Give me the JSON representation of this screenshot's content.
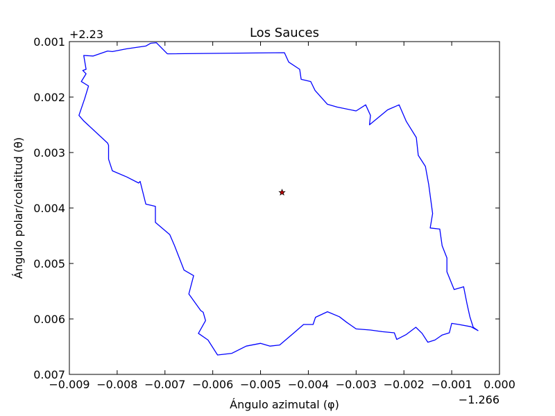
{
  "chart_data": {
    "type": "line",
    "title": "Los Sauces",
    "xlabel": "Ángulo azimutal (φ)",
    "ylabel": "Ángulo polar/colatitud (θ)",
    "x_offset_label": "−1.266",
    "y_offset_label": "+2.23",
    "xlim": [
      -0.009,
      0.0
    ],
    "ylim": [
      0.001,
      0.007
    ],
    "y_inverted": true,
    "grid": false,
    "x_ticks": [
      "−0.009",
      "−0.008",
      "−0.007",
      "−0.006",
      "−0.005",
      "−0.004",
      "−0.003",
      "−0.002",
      "−0.001",
      "0.000"
    ],
    "y_ticks": [
      "0.001",
      "0.002",
      "0.003",
      "0.004",
      "0.005",
      "0.006",
      "0.007"
    ],
    "x_tick_values": [
      -0.009,
      -0.008,
      -0.007,
      -0.006,
      -0.005,
      -0.004,
      -0.003,
      -0.002,
      -0.001,
      0.0
    ],
    "y_tick_values": [
      0.001,
      0.002,
      0.003,
      0.004,
      0.005,
      0.006,
      0.007
    ],
    "colors": {
      "boundary": "#0000ff",
      "center_fill": "#c00000",
      "axes": "#000000"
    },
    "series": [
      {
        "type": "line",
        "x": [
          -0.00695,
          -0.0045,
          -0.00441,
          -0.00418,
          -0.00415,
          -0.00395,
          -0.00386,
          -0.0036,
          -0.0034,
          -0.003,
          -0.0028,
          -0.0027,
          -0.00272,
          -0.00234,
          -0.0021,
          -0.00195,
          -0.00174,
          -0.0017,
          -0.00155,
          -0.00148,
          -0.0014,
          -0.00145,
          -0.00125,
          -0.0012,
          -0.0011,
          -0.0011,
          -0.00095,
          -0.00075,
          -0.00068,
          -0.00062,
          -0.00055,
          -0.00045,
          -0.0006,
          -0.00085,
          -0.001,
          -0.00105,
          -0.0012,
          -0.00135,
          -0.0015,
          -0.00162,
          -0.00175,
          -0.00195,
          -0.00215,
          -0.0022,
          -0.00245,
          -0.0027,
          -0.003,
          -0.0032,
          -0.00335,
          -0.0036,
          -0.00385,
          -0.0039,
          -0.0041,
          -0.0043,
          -0.0046,
          -0.0048,
          -0.005,
          -0.0053,
          -0.0056,
          -0.0059,
          -0.0061,
          -0.0063,
          -0.00615,
          -0.0062,
          -0.00625,
          -0.0065,
          -0.0064,
          -0.0066,
          -0.0068,
          -0.0069,
          -0.0072,
          -0.0072,
          -0.0074,
          -0.00752,
          -0.00755,
          -0.0078,
          -0.0081,
          -0.00818,
          -0.00818,
          -0.0082,
          -0.0087,
          -0.0088,
          -0.00868,
          -0.0086,
          -0.00875,
          -0.00865,
          -0.00872,
          -0.00865,
          -0.0087,
          -0.0085,
          -0.0082,
          -0.0081,
          -0.0078,
          -0.0074,
          -0.0073,
          -0.00718,
          -0.00695
        ],
        "y": [
          0.00122,
          0.0012,
          0.00137,
          0.0015,
          0.00168,
          0.00172,
          0.00188,
          0.00213,
          0.00218,
          0.00225,
          0.00214,
          0.00233,
          0.0025,
          0.00223,
          0.00214,
          0.00244,
          0.00273,
          0.00305,
          0.00325,
          0.00358,
          0.0041,
          0.00436,
          0.00438,
          0.00468,
          0.0049,
          0.00515,
          0.00547,
          0.00542,
          0.00573,
          0.00596,
          0.00615,
          0.00621,
          0.00614,
          0.0061,
          0.00608,
          0.00625,
          0.00629,
          0.00638,
          0.00642,
          0.00626,
          0.00615,
          0.00628,
          0.00637,
          0.00625,
          0.00623,
          0.0062,
          0.00618,
          0.00606,
          0.00596,
          0.00587,
          0.00597,
          0.0061,
          0.0061,
          0.00625,
          0.00647,
          0.00649,
          0.00644,
          0.00649,
          0.00662,
          0.00665,
          0.00638,
          0.00626,
          0.00603,
          0.00588,
          0.00585,
          0.00555,
          0.00522,
          0.00512,
          0.00468,
          0.00448,
          0.00426,
          0.00397,
          0.00393,
          0.00352,
          0.00355,
          0.00344,
          0.00333,
          0.00312,
          0.00287,
          0.00283,
          0.00243,
          0.00233,
          0.00203,
          0.0018,
          0.00172,
          0.00158,
          0.00152,
          0.0015,
          0.00125,
          0.00126,
          0.00117,
          0.00118,
          0.00113,
          0.00108,
          0.00103,
          0.00102,
          0.00122
        ]
      },
      {
        "type": "scatter",
        "marker": "star",
        "x": [
          -0.00455
        ],
        "y": [
          0.00372
        ]
      }
    ]
  }
}
